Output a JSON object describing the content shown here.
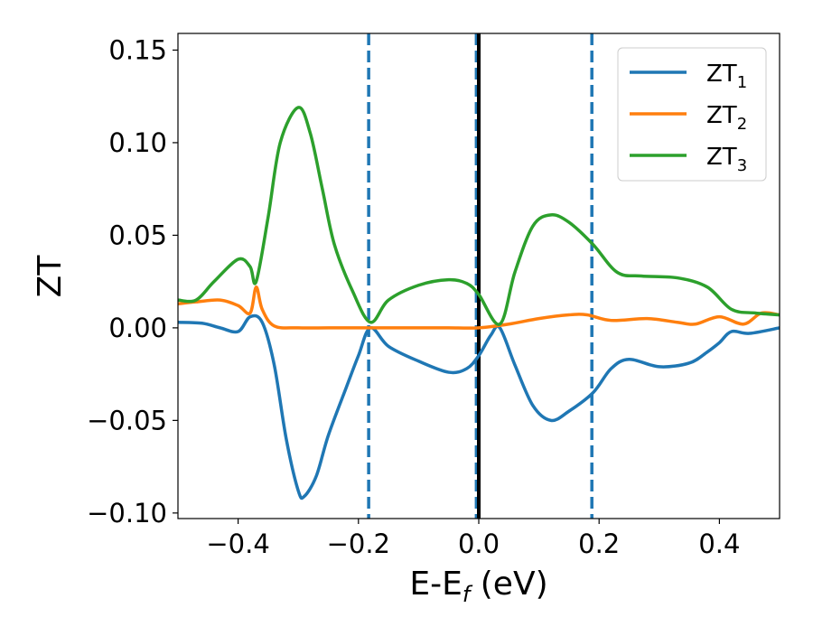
{
  "chart_data": {
    "type": "line",
    "xlabel": "E-E",
    "xlabel_sub": "f",
    "xlabel_unit": " (eV)",
    "ylabel": "ZT",
    "xlim": [
      -0.5,
      0.5
    ],
    "ylim": [
      -0.103,
      0.159
    ],
    "xticks": [
      -0.4,
      -0.2,
      0.0,
      0.2,
      0.4
    ],
    "xtick_labels": [
      "−0.4",
      "−0.2",
      "0.0",
      "0.2",
      "0.4"
    ],
    "yticks": [
      -0.1,
      -0.05,
      0.0,
      0.05,
      0.1,
      0.15
    ],
    "ytick_labels": [
      "−0.10",
      "−0.05",
      "0.00",
      "0.05",
      "0.10",
      "0.15"
    ],
    "grid": false,
    "legend_position": "top-right",
    "vertical_lines": [
      {
        "x": -0.183,
        "style": "dashed",
        "color": "#1f77b4"
      },
      {
        "x": -0.004,
        "style": "dashed",
        "color": "#1f77b4"
      },
      {
        "x": 0.0,
        "style": "solid",
        "color": "#000000"
      },
      {
        "x": 0.188,
        "style": "dashed",
        "color": "#1f77b4"
      }
    ],
    "series": [
      {
        "name": "ZT",
        "sub": "1",
        "color": "#1f77b4",
        "x": [
          -0.5,
          -0.46,
          -0.43,
          -0.4,
          -0.38,
          -0.36,
          -0.34,
          -0.32,
          -0.3,
          -0.29,
          -0.27,
          -0.25,
          -0.22,
          -0.2,
          -0.18,
          -0.15,
          -0.1,
          -0.05,
          -0.02,
          0.0,
          0.02,
          0.035,
          0.06,
          0.09,
          0.12,
          0.15,
          0.19,
          0.22,
          0.25,
          0.3,
          0.35,
          0.38,
          0.4,
          0.42,
          0.45,
          0.5
        ],
        "y": [
          0.003,
          0.0025,
          0.0,
          -0.002,
          0.006,
          0.003,
          -0.02,
          -0.06,
          -0.088,
          -0.091,
          -0.08,
          -0.058,
          -0.032,
          -0.015,
          0.0,
          -0.01,
          -0.018,
          -0.024,
          -0.022,
          -0.015,
          -0.004,
          0.0,
          -0.02,
          -0.042,
          -0.05,
          -0.045,
          -0.035,
          -0.022,
          -0.017,
          -0.021,
          -0.019,
          -0.013,
          -0.008,
          -0.002,
          -0.003,
          0.0
        ]
      },
      {
        "name": "ZT",
        "sub": "2",
        "color": "#ff7f0e",
        "x": [
          -0.5,
          -0.47,
          -0.43,
          -0.4,
          -0.38,
          -0.37,
          -0.36,
          -0.34,
          -0.3,
          -0.25,
          -0.2,
          -0.15,
          -0.1,
          -0.05,
          0.0,
          0.05,
          0.1,
          0.15,
          0.18,
          0.22,
          0.28,
          0.33,
          0.36,
          0.4,
          0.44,
          0.47,
          0.5
        ],
        "y": [
          0.013,
          0.014,
          0.015,
          0.012,
          0.008,
          0.022,
          0.01,
          0.001,
          0.0,
          0.0,
          0.0,
          0.0,
          0.0,
          0.0,
          0.0,
          0.002,
          0.005,
          0.007,
          0.007,
          0.004,
          0.005,
          0.003,
          0.002,
          0.006,
          0.002,
          0.008,
          0.007
        ]
      },
      {
        "name": "ZT",
        "sub": "3",
        "color": "#2ca02c",
        "x": [
          -0.5,
          -0.47,
          -0.44,
          -0.4,
          -0.38,
          -0.37,
          -0.35,
          -0.33,
          -0.3,
          -0.28,
          -0.26,
          -0.24,
          -0.21,
          -0.18,
          -0.15,
          -0.1,
          -0.05,
          -0.02,
          0.0,
          0.035,
          0.06,
          0.09,
          0.12,
          0.15,
          0.19,
          0.23,
          0.27,
          0.33,
          0.38,
          0.42,
          0.46,
          0.5
        ],
        "y": [
          0.015,
          0.015,
          0.025,
          0.037,
          0.033,
          0.025,
          0.06,
          0.1,
          0.119,
          0.105,
          0.075,
          0.045,
          0.02,
          0.003,
          0.015,
          0.023,
          0.026,
          0.024,
          0.018,
          0.002,
          0.03,
          0.055,
          0.061,
          0.057,
          0.045,
          0.03,
          0.028,
          0.027,
          0.022,
          0.01,
          0.008,
          0.007
        ]
      }
    ]
  }
}
